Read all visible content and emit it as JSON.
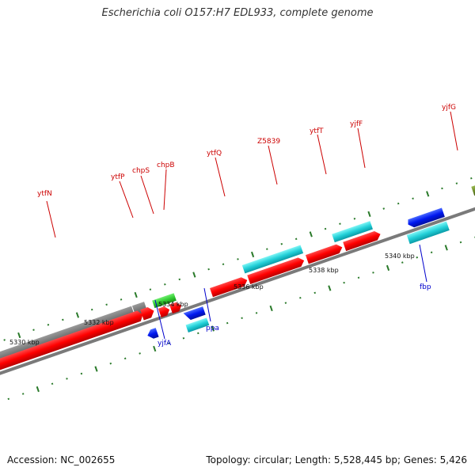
{
  "title": "Escherichia coli O157:H7 EDL933, complete genome",
  "footer": {
    "accession": "Accession: NC_002655",
    "topology": "Topology: circular; Length: 5,528,445 bp; Genes: 5,426"
  },
  "colors": {
    "forward_label": "#cc0000",
    "reverse_label": "#0000cc",
    "tick": "#2a7a2a",
    "backbone": "#808080"
  },
  "kbp_labels": [
    "5330 kbp",
    "5332 kbp",
    "5334 kbp",
    "5336 kbp",
    "5338 kbp",
    "5340 kbp"
  ],
  "gene_labels_forward": [
    "ytfN",
    "ytfP",
    "chpS",
    "chpB",
    "ytfQ",
    "Z5839",
    "ytfT",
    "yjfF",
    "yjfG"
  ],
  "gene_labels_reverse": [
    "yjfA",
    "ppa",
    "fbp"
  ]
}
